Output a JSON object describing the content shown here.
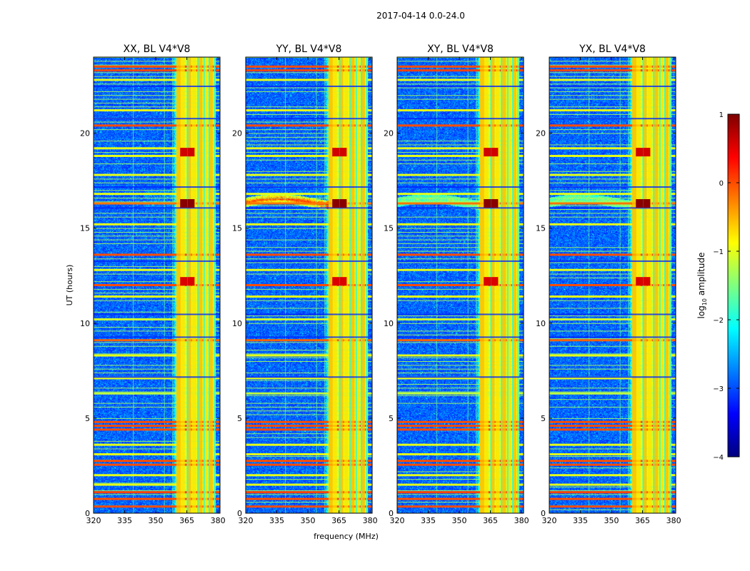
{
  "figure_title": "2017-04-14 0.0-24.0",
  "chart_data": [
    {
      "type": "heatmap",
      "title": "XX, BL V4*V8",
      "xlabel": "",
      "ylabel": "UT (hours)",
      "xlim": [
        320,
        381
      ],
      "ylim": [
        0,
        24
      ],
      "xticks": [
        320,
        335,
        350,
        365,
        380
      ],
      "yticks": [
        0,
        5,
        10,
        15,
        20
      ],
      "dark_feature": "none"
    },
    {
      "type": "heatmap",
      "title": "YY, BL V4*V8",
      "xlabel": "frequency (MHz)",
      "ylabel": "",
      "xlim": [
        320,
        381
      ],
      "ylim": [
        0,
        24
      ],
      "xticks": [
        320,
        335,
        350,
        365,
        380
      ],
      "yticks": [
        0,
        5,
        10,
        15,
        20
      ],
      "dark_feature": "strong"
    },
    {
      "type": "heatmap",
      "title": "XY, BL V4*V8",
      "xlabel": "",
      "ylabel": "",
      "xlim": [
        320,
        381
      ],
      "ylim": [
        0,
        24
      ],
      "xticks": [
        320,
        335,
        350,
        365,
        380
      ],
      "yticks": [
        0,
        5,
        10,
        15,
        20
      ],
      "dark_feature": "faint"
    },
    {
      "type": "heatmap",
      "title": "YX, BL V4*V8",
      "xlabel": "",
      "ylabel": "",
      "xlim": [
        320,
        381
      ],
      "ylim": [
        0,
        24
      ],
      "xticks": [
        320,
        335,
        350,
        365,
        380
      ],
      "yticks": [
        0,
        5,
        10,
        15,
        20
      ],
      "dark_feature": "faint"
    }
  ],
  "signal": {
    "rfi_band_mhz": [
      360,
      379
    ],
    "rfi_channels_mhz": [
      361,
      363,
      366,
      368.5,
      371.5,
      374,
      376.5
    ],
    "narrow_lines_mhz": [
      339,
      354,
      358
    ],
    "rfi_hours": [
      {
        "t": 0.35,
        "level": 0.0
      },
      {
        "t": 0.75,
        "level": 0.0
      },
      {
        "t": 1.1,
        "level": 0.05
      },
      {
        "t": 1.5,
        "level": -1.0
      },
      {
        "t": 2.0,
        "level": -1.0
      },
      {
        "t": 2.55,
        "level": 0.0
      },
      {
        "t": 2.75,
        "level": 0.0
      },
      {
        "t": 3.1,
        "level": -1.0
      },
      {
        "t": 3.6,
        "level": -1.0
      },
      {
        "t": 4.4,
        "level": 0.0
      },
      {
        "t": 4.6,
        "level": 0.0
      },
      {
        "t": 4.8,
        "level": 0.0
      },
      {
        "t": 6.3,
        "level": -1.2
      },
      {
        "t": 7.1,
        "level": -1.0
      },
      {
        "t": 8.3,
        "level": -1.0
      },
      {
        "t": 9.1,
        "level": -0.1
      },
      {
        "t": 10.2,
        "level": -1.1
      },
      {
        "t": 11.4,
        "level": -1.0
      },
      {
        "t": 12.0,
        "level": 0.0
      },
      {
        "t": 12.8,
        "level": -1.0
      },
      {
        "t": 13.6,
        "level": 0.0
      },
      {
        "t": 15.2,
        "level": -1.0
      },
      {
        "t": 16.3,
        "level": -0.2
      },
      {
        "t": 16.8,
        "level": -1.0
      },
      {
        "t": 17.8,
        "level": -1.0
      },
      {
        "t": 18.8,
        "level": -1.0
      },
      {
        "t": 19.2,
        "level": -1.0
      },
      {
        "t": 20.4,
        "level": 0.0
      },
      {
        "t": 21.2,
        "level": -1.0
      },
      {
        "t": 22.8,
        "level": -1.0
      },
      {
        "t": 23.3,
        "level": 0.05
      },
      {
        "t": 23.5,
        "level": 0.0
      }
    ],
    "dark_hours": [
      7.2,
      9.3,
      10.5,
      13.3,
      16.1,
      17.2,
      20.8,
      22.5
    ],
    "hot_spots": [
      {
        "f": 363.5,
        "t": 16.3,
        "level": 0.95
      },
      {
        "f": 367,
        "t": 16.3,
        "level": 0.95
      },
      {
        "f": 363.5,
        "t": 12.2,
        "level": 0.55
      },
      {
        "f": 367,
        "t": 12.2,
        "level": 0.55
      },
      {
        "f": 363.5,
        "t": 19.0,
        "level": 0.6
      },
      {
        "f": 367,
        "t": 19.0,
        "level": 0.6
      }
    ]
  },
  "colorbar": {
    "label_prefix": "log",
    "label_sub": "10",
    "label_suffix": " amplitude",
    "min": -4,
    "max": 1,
    "ticks": [
      1,
      0,
      -1,
      -2,
      -3,
      -4
    ],
    "tick_labels": [
      "1",
      "0",
      "−1",
      "−2",
      "−3",
      "−4"
    ],
    "stops": [
      "#00007f",
      "#0000ff",
      "#007fff",
      "#00ffff",
      "#7fff7f",
      "#ffff00",
      "#ff7f00",
      "#ff0000",
      "#7f0000"
    ]
  }
}
